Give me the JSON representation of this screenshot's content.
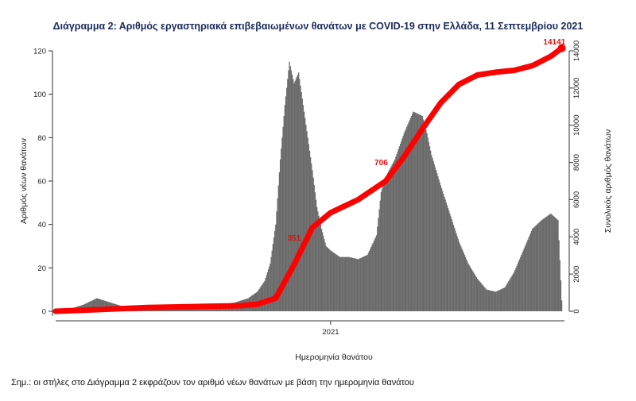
{
  "title": "Διάγραμμα 2: Αριθμός εργαστηριακά επιβεβαιωμένων θανάτων με COVID-19 στην Ελλάδα, 11 Σεπτεμβρίου 2021",
  "note": "Σημ.: οι στήλες στο Διάγραμμα 2 εκφράζουν τον αριθμό νέων θανάτων με βάση την ημερομηνία θανάτου",
  "colors": {
    "bars": "#6b6b6b",
    "cumulative_line": "#ff0000",
    "callout": "#e01010"
  },
  "chart_data": {
    "type": "bar",
    "xlabel": "Ημερομηνία θανάτου",
    "ylabel_left": "Αριθμός νέων θανάτων",
    "ylabel_right": "Συνολικός αριθμός θανάτων",
    "x_tick_labels": [
      "2021"
    ],
    "left_ticks": [
      0,
      20,
      40,
      60,
      80,
      100,
      120
    ],
    "right_ticks": [
      0,
      2000,
      4000,
      6000,
      8000,
      10000,
      12000,
      14000
    ],
    "ylim_left": [
      0,
      120
    ],
    "ylim_right": [
      0,
      14000
    ],
    "xlim_days": [
      -300,
      255
    ],
    "x_tick_day": 0,
    "series": [
      {
        "kind": "bars",
        "interpolated_daily": true,
        "points": [
          [
            -300,
            0
          ],
          [
            -285,
            1
          ],
          [
            -270,
            3
          ],
          [
            -255,
            6
          ],
          [
            -240,
            4
          ],
          [
            -225,
            2
          ],
          [
            -210,
            1
          ],
          [
            -195,
            1
          ],
          [
            -180,
            1
          ],
          [
            -165,
            1
          ],
          [
            -150,
            1
          ],
          [
            -135,
            2
          ],
          [
            -120,
            3
          ],
          [
            -105,
            4
          ],
          [
            -90,
            6
          ],
          [
            -80,
            9
          ],
          [
            -72,
            14
          ],
          [
            -66,
            22
          ],
          [
            -60,
            40
          ],
          [
            -55,
            70
          ],
          [
            -50,
            95
          ],
          [
            -45,
            115
          ],
          [
            -40,
            105
          ],
          [
            -35,
            110
          ],
          [
            -30,
            95
          ],
          [
            -25,
            80
          ],
          [
            -20,
            65
          ],
          [
            -15,
            48
          ],
          [
            -10,
            38
          ],
          [
            -5,
            30
          ],
          [
            0,
            28
          ],
          [
            10,
            25
          ],
          [
            20,
            25
          ],
          [
            30,
            24
          ],
          [
            40,
            26
          ],
          [
            50,
            35
          ],
          [
            55,
            55
          ],
          [
            60,
            62
          ],
          [
            70,
            70
          ],
          [
            80,
            82
          ],
          [
            90,
            92
          ],
          [
            100,
            90
          ],
          [
            105,
            82
          ],
          [
            110,
            72
          ],
          [
            120,
            58
          ],
          [
            130,
            45
          ],
          [
            140,
            32
          ],
          [
            150,
            22
          ],
          [
            160,
            15
          ],
          [
            170,
            10
          ],
          [
            180,
            9
          ],
          [
            190,
            11
          ],
          [
            200,
            18
          ],
          [
            210,
            28
          ],
          [
            220,
            38
          ],
          [
            230,
            42
          ],
          [
            240,
            45
          ],
          [
            248,
            42
          ],
          [
            252,
            5
          ]
        ]
      },
      {
        "kind": "line",
        "name": "cumulative",
        "points": [
          [
            -300,
            0
          ],
          [
            -250,
            100
          ],
          [
            -200,
            200
          ],
          [
            -150,
            250
          ],
          [
            -100,
            300
          ],
          [
            -80,
            380
          ],
          [
            -60,
            700
          ],
          [
            -40,
            2500
          ],
          [
            -20,
            4500
          ],
          [
            0,
            5300
          ],
          [
            30,
            6000
          ],
          [
            60,
            7000
          ],
          [
            80,
            8300
          ],
          [
            100,
            9800
          ],
          [
            120,
            11200
          ],
          [
            140,
            12200
          ],
          [
            160,
            12700
          ],
          [
            180,
            12850
          ],
          [
            200,
            12950
          ],
          [
            220,
            13200
          ],
          [
            240,
            13700
          ],
          [
            252,
            14141
          ]
        ]
      }
    ],
    "callouts": [
      {
        "label": "351",
        "day": -40,
        "y": 3800
      },
      {
        "label": "706",
        "day": 55,
        "y": 7850
      },
      {
        "label": "14141",
        "day": 244,
        "y": 14350
      }
    ]
  }
}
